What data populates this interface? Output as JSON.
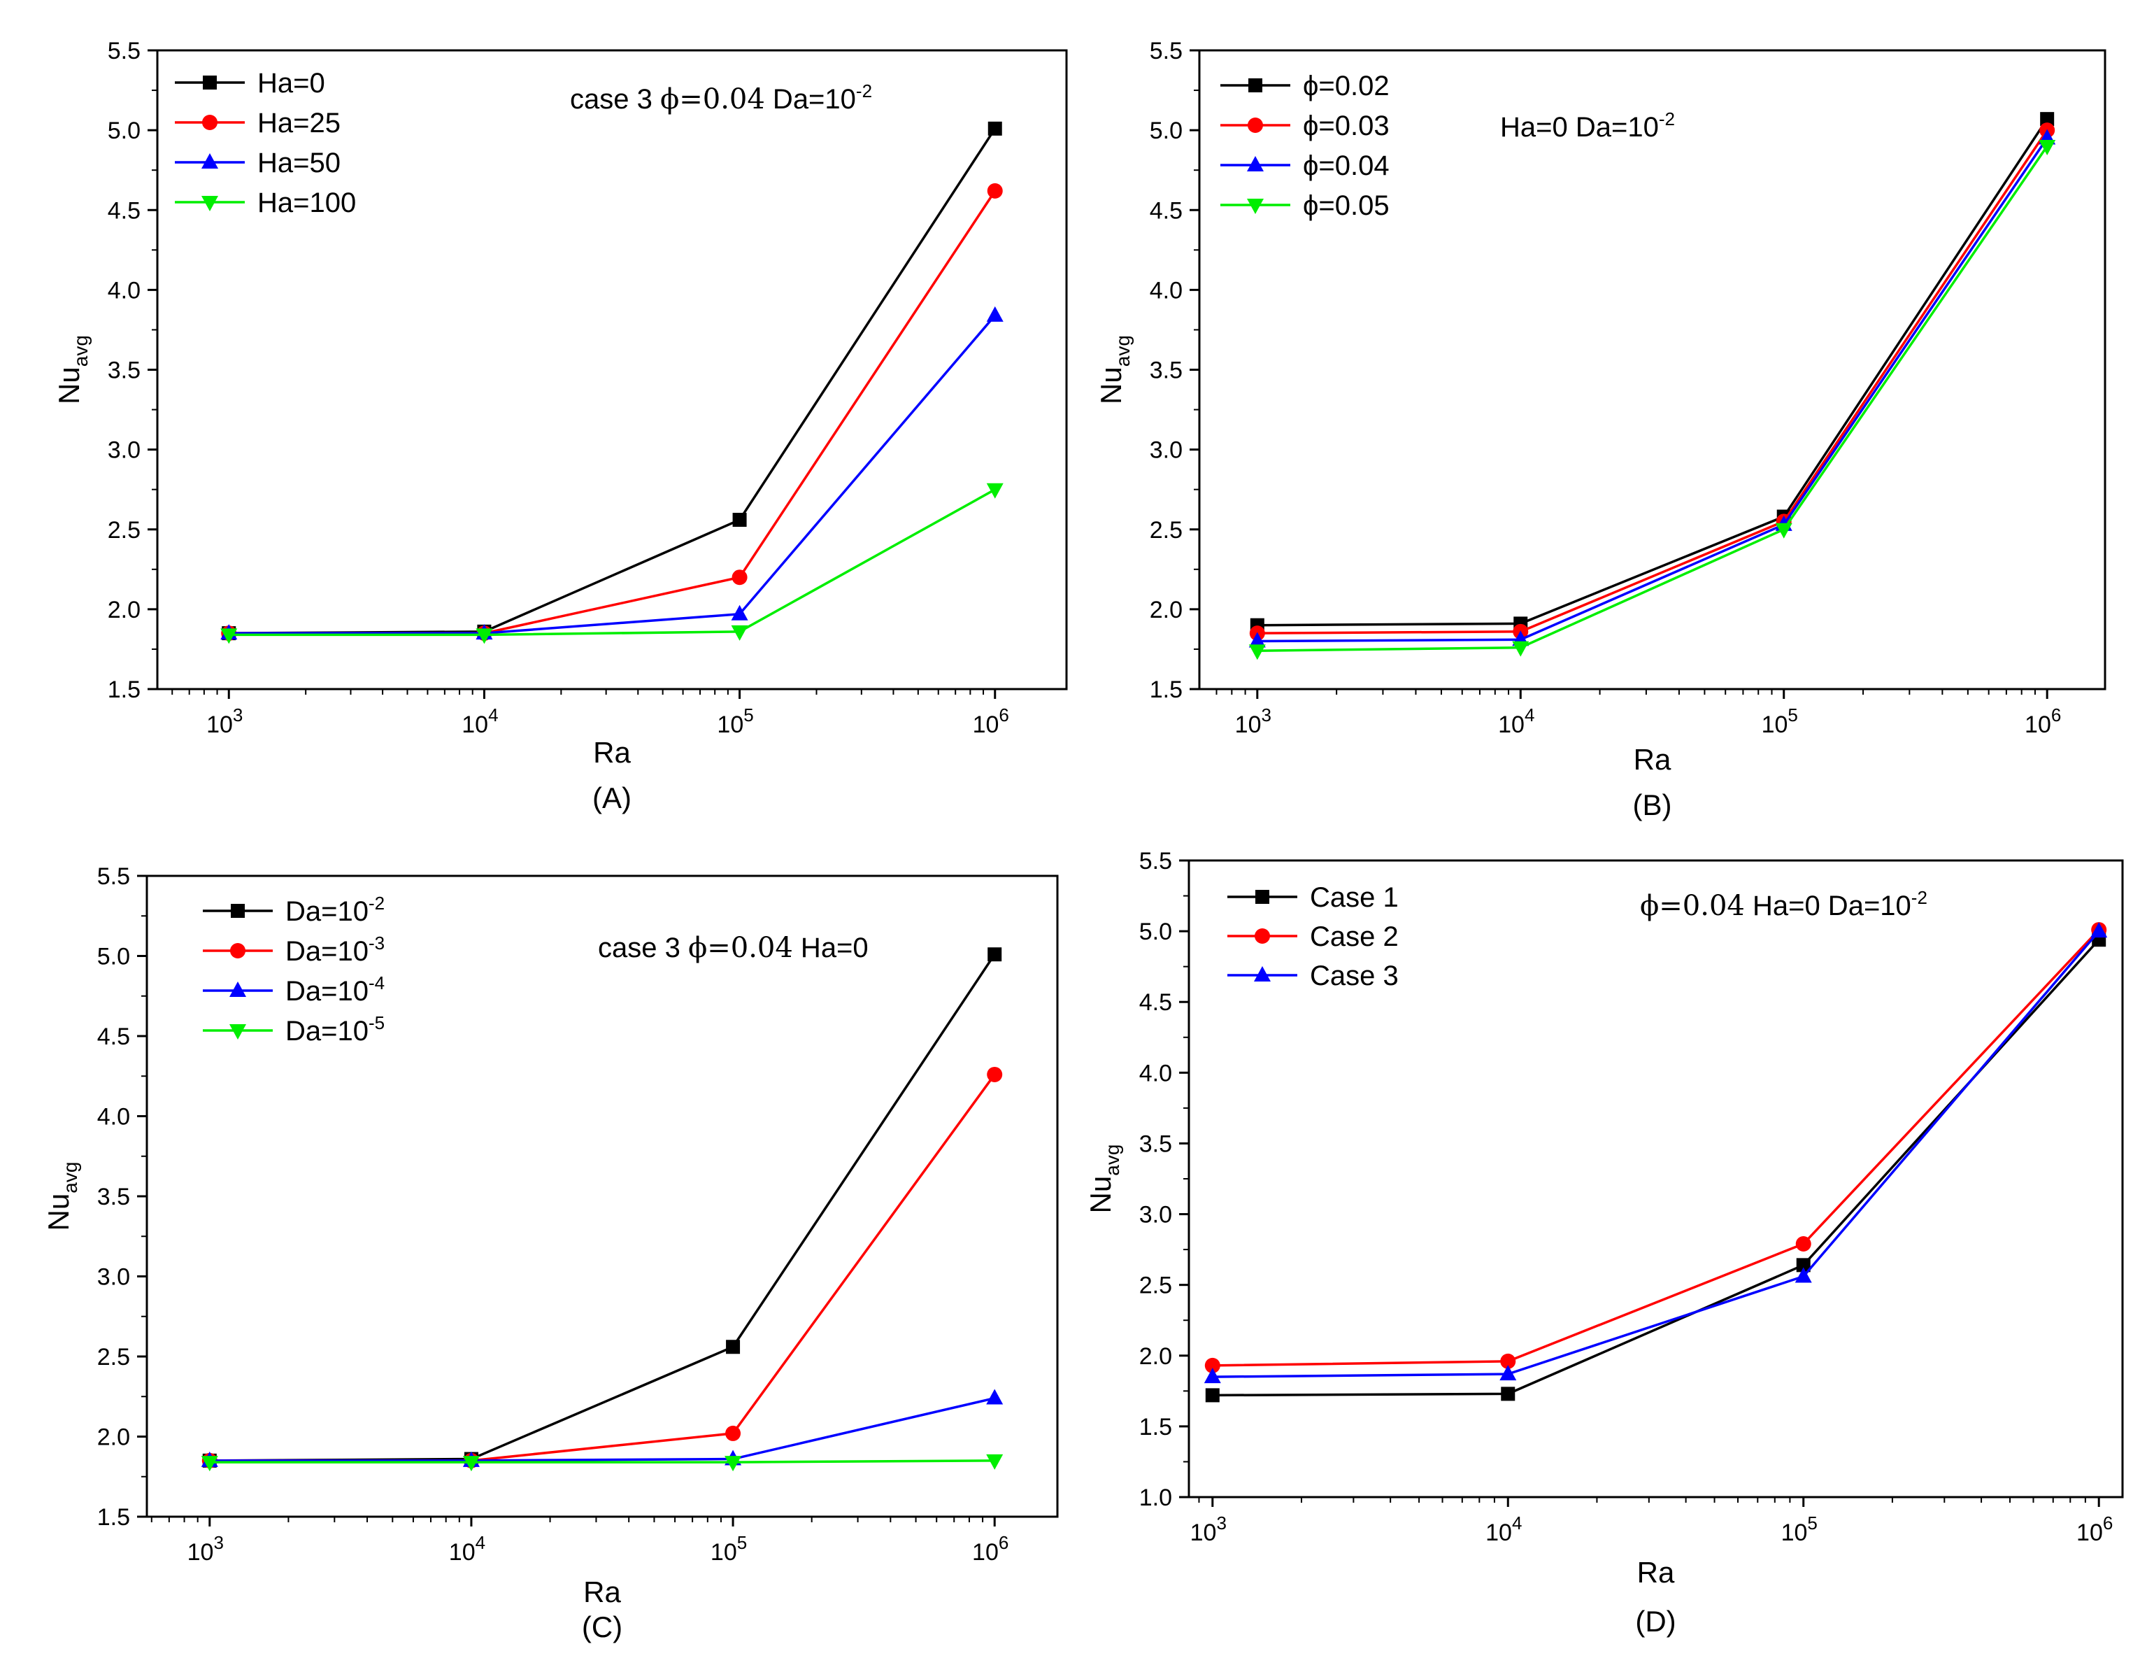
{
  "chart_data": [
    {
      "type": "line",
      "panel_label": "(A)",
      "xlabel": "Ra",
      "ylabel_main": "Nu",
      "ylabel_sub": "avg",
      "x_scale": "log",
      "x": [
        1000,
        10000,
        100000,
        1000000
      ],
      "x_tick_base": [
        "10",
        "10",
        "10",
        "10"
      ],
      "x_tick_exp": [
        "3",
        "4",
        "5",
        "6"
      ],
      "ylim": [
        1.5,
        5.5
      ],
      "y_ticks": [
        "1.5",
        "2.0",
        "2.5",
        "3.0",
        "3.5",
        "4.0",
        "4.5",
        "5.0",
        "5.5"
      ],
      "annotation": {
        "prefix": "case 3  ",
        "phi": "ϕ=0.04",
        "mid": "  Da=10",
        "exp": "-2"
      },
      "legend_position": "top-left",
      "series": [
        {
          "name": "Ha=0",
          "color": "#000000",
          "marker": "square",
          "values": [
            1.85,
            1.86,
            2.56,
            5.01
          ]
        },
        {
          "name": "Ha=25",
          "color": "#ff0000",
          "marker": "circle",
          "values": [
            1.85,
            1.85,
            2.2,
            4.62
          ]
        },
        {
          "name": "Ha=50",
          "color": "#0000ff",
          "marker": "triangle-up",
          "values": [
            1.85,
            1.85,
            1.97,
            3.84
          ]
        },
        {
          "name": "Ha=100",
          "color": "#00ee00",
          "marker": "triangle-down",
          "values": [
            1.84,
            1.84,
            1.86,
            2.75
          ]
        }
      ]
    },
    {
      "type": "line",
      "panel_label": "(B)",
      "xlabel": "Ra",
      "ylabel_main": "Nu",
      "ylabel_sub": "avg",
      "x_scale": "log",
      "x": [
        1000,
        10000,
        100000,
        1000000
      ],
      "x_tick_base": [
        "10",
        "10",
        "10",
        "10"
      ],
      "x_tick_exp": [
        "3",
        "4",
        "5",
        "6"
      ],
      "ylim": [
        1.5,
        5.5
      ],
      "y_ticks": [
        "1.5",
        "2.0",
        "2.5",
        "3.0",
        "3.5",
        "4.0",
        "4.5",
        "5.0",
        "5.5"
      ],
      "annotation": {
        "prefix": "Ha=0  Da=10",
        "exp": "-2"
      },
      "legend_position": "top-left",
      "series": [
        {
          "name": "ϕ=0.02",
          "color": "#000000",
          "marker": "square",
          "values": [
            1.9,
            1.91,
            2.58,
            5.07
          ]
        },
        {
          "name": "ϕ=0.03",
          "color": "#ff0000",
          "marker": "circle",
          "values": [
            1.85,
            1.86,
            2.55,
            5.0
          ]
        },
        {
          "name": "ϕ=0.04",
          "color": "#0000ff",
          "marker": "triangle-up",
          "values": [
            1.8,
            1.81,
            2.53,
            4.95
          ]
        },
        {
          "name": "ϕ=0.05",
          "color": "#00ee00",
          "marker": "triangle-down",
          "values": [
            1.74,
            1.76,
            2.5,
            4.9
          ]
        }
      ]
    },
    {
      "type": "line",
      "panel_label": "(C)",
      "xlabel": "Ra",
      "ylabel_main": "Nu",
      "ylabel_sub": "avg",
      "x_scale": "log",
      "x": [
        1000,
        10000,
        100000,
        1000000
      ],
      "x_tick_base": [
        "10",
        "10",
        "10",
        "10"
      ],
      "x_tick_exp": [
        "3",
        "4",
        "5",
        "6"
      ],
      "ylim": [
        1.5,
        5.5
      ],
      "y_ticks": [
        "1.5",
        "2.0",
        "2.5",
        "3.0",
        "3.5",
        "4.0",
        "4.5",
        "5.0",
        "5.5"
      ],
      "annotation": {
        "prefix": "case 3  ",
        "phi": "ϕ=0.04",
        "mid": "  Ha=0",
        "exp": ""
      },
      "legend_position": "top-left",
      "series": [
        {
          "name": "Da=10",
          "name_exp": "-2",
          "color": "#000000",
          "marker": "square",
          "values": [
            1.85,
            1.86,
            2.56,
            5.01
          ]
        },
        {
          "name": "Da=10",
          "name_exp": "-3",
          "color": "#ff0000",
          "marker": "circle",
          "values": [
            1.85,
            1.85,
            2.02,
            4.26
          ]
        },
        {
          "name": "Da=10",
          "name_exp": "-4",
          "color": "#0000ff",
          "marker": "triangle-up",
          "values": [
            1.85,
            1.85,
            1.86,
            2.24
          ]
        },
        {
          "name": "Da=10",
          "name_exp": "-5",
          "color": "#00ee00",
          "marker": "triangle-down",
          "values": [
            1.84,
            1.84,
            1.84,
            1.85
          ]
        }
      ]
    },
    {
      "type": "line",
      "panel_label": "(D)",
      "xlabel": "Ra",
      "ylabel_main": "Nu",
      "ylabel_sub": "avg",
      "x_scale": "log",
      "x": [
        1000,
        10000,
        100000,
        1000000
      ],
      "x_tick_base": [
        "10",
        "10",
        "10",
        "10"
      ],
      "x_tick_exp": [
        "3",
        "4",
        "5",
        "6"
      ],
      "ylim": [
        1.0,
        5.5
      ],
      "y_ticks": [
        "1.0",
        "1.5",
        "2.0",
        "2.5",
        "3.0",
        "3.5",
        "4.0",
        "4.5",
        "5.0",
        "5.5"
      ],
      "annotation": {
        "prefix": "",
        "phi": "ϕ=0.04",
        "mid": "  Ha=0  Da=10",
        "exp": "-2"
      },
      "legend_position": "top-left",
      "series": [
        {
          "name": "Case 1",
          "color": "#000000",
          "marker": "square",
          "values": [
            1.72,
            1.73,
            2.64,
            4.94
          ]
        },
        {
          "name": "Case 2",
          "color": "#ff0000",
          "marker": "circle",
          "values": [
            1.93,
            1.96,
            2.79,
            5.01
          ]
        },
        {
          "name": "Case 3",
          "color": "#0000ff",
          "marker": "triangle-up",
          "values": [
            1.85,
            1.87,
            2.56,
            5.0
          ]
        }
      ]
    }
  ]
}
